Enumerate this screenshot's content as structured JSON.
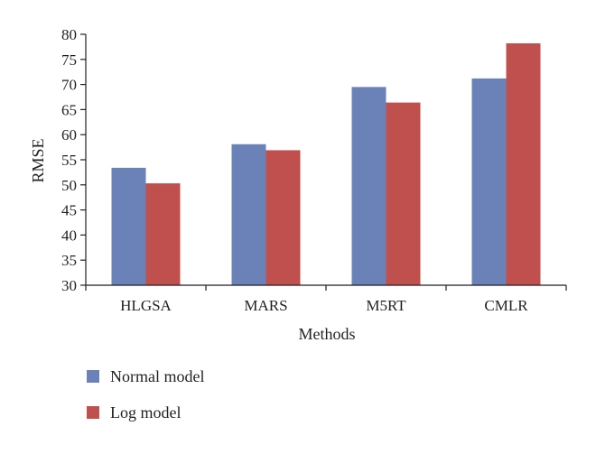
{
  "chart_data": {
    "type": "bar",
    "xlabel": "Methods",
    "ylabel": "RMSE",
    "categories": [
      "HLGSA",
      "MARS",
      "M5RT",
      "CMLR"
    ],
    "series": [
      {
        "name": "Normal model",
        "color": "#6a82b8",
        "values": [
          53.4,
          58.1,
          69.5,
          71.2
        ]
      },
      {
        "name": "Log model",
        "color": "#c0504d",
        "values": [
          50.3,
          56.9,
          66.4,
          78.2
        ]
      }
    ],
    "ylim": [
      30,
      80
    ],
    "yticks": [
      30,
      35,
      40,
      45,
      50,
      55,
      60,
      65,
      70,
      75,
      80
    ],
    "grid": false,
    "legend_position": "bottom-left"
  }
}
